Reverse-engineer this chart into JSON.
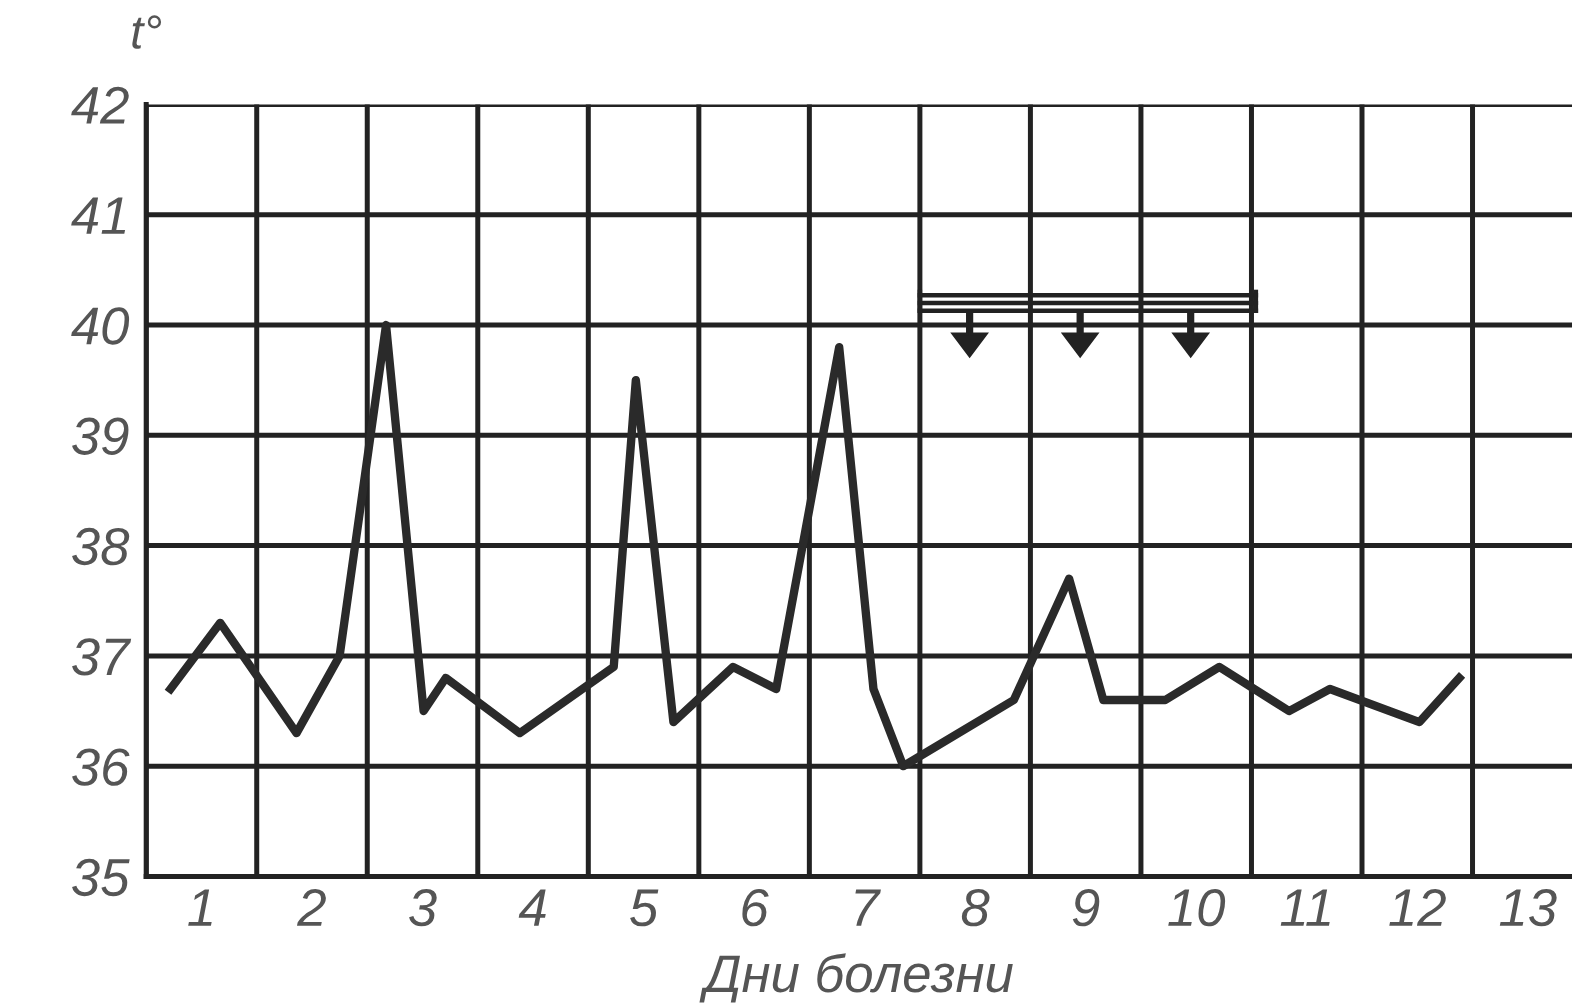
{
  "chart_data": {
    "type": "line",
    "ylabel": "t°",
    "xlabel": "Дни болезни",
    "x": [
      0.22,
      0.67,
      1.36,
      1.75,
      2.17,
      2.51,
      2.71,
      3.38,
      4.23,
      4.43,
      4.77,
      5.31,
      5.7,
      6.27,
      6.58,
      6.85,
      7.85,
      8.35,
      8.66,
      9.22,
      9.71,
      10.34,
      10.71,
      11.52,
      11.88
    ],
    "series": [
      {
        "color": "#2a2a2a",
        "values": [
          36.7,
          37.3,
          36.3,
          37.0,
          40.0,
          36.5,
          36.8,
          36.3,
          36.9,
          39.5,
          36.4,
          36.9,
          36.7,
          39.8,
          36.7,
          36.0,
          36.6,
          37.7,
          36.6,
          36.6,
          36.9,
          36.5,
          36.7,
          36.4,
          36.8
        ]
      }
    ],
    "xlim": [
      0,
      12.9
    ],
    "xticks": [
      {
        "value": 0,
        "label": null
      },
      {
        "value": 0.5,
        "label": "1"
      },
      {
        "value": 1,
        "label": null
      },
      {
        "value": 1.5,
        "label": "2"
      },
      {
        "value": 2,
        "label": null
      },
      {
        "value": 2.5,
        "label": "3"
      },
      {
        "value": 3,
        "label": null
      },
      {
        "value": 3.5,
        "label": "4"
      },
      {
        "value": 4,
        "label": null
      },
      {
        "value": 4.5,
        "label": "5"
      },
      {
        "value": 5,
        "label": null
      },
      {
        "value": 5.5,
        "label": "6"
      },
      {
        "value": 6,
        "label": null
      },
      {
        "value": 6.5,
        "label": "7"
      },
      {
        "value": 7,
        "label": null
      },
      {
        "value": 7.5,
        "label": "8"
      },
      {
        "value": 8,
        "label": null
      },
      {
        "value": 8.5,
        "label": "9"
      },
      {
        "value": 9,
        "label": null
      },
      {
        "value": 9.5,
        "label": "10"
      },
      {
        "value": 10,
        "label": null
      },
      {
        "value": 10.5,
        "label": "11"
      },
      {
        "value": 11,
        "label": null
      },
      {
        "value": 11.5,
        "label": "12"
      },
      {
        "value": 12,
        "label": null
      },
      {
        "value": 12.5,
        "label": "13"
      }
    ],
    "ylim": [
      35,
      42
    ],
    "yticks": [
      35,
      36,
      37,
      38,
      39,
      40,
      41,
      42
    ],
    "grid": true,
    "marker": "none",
    "line_style": "solid"
  }
}
